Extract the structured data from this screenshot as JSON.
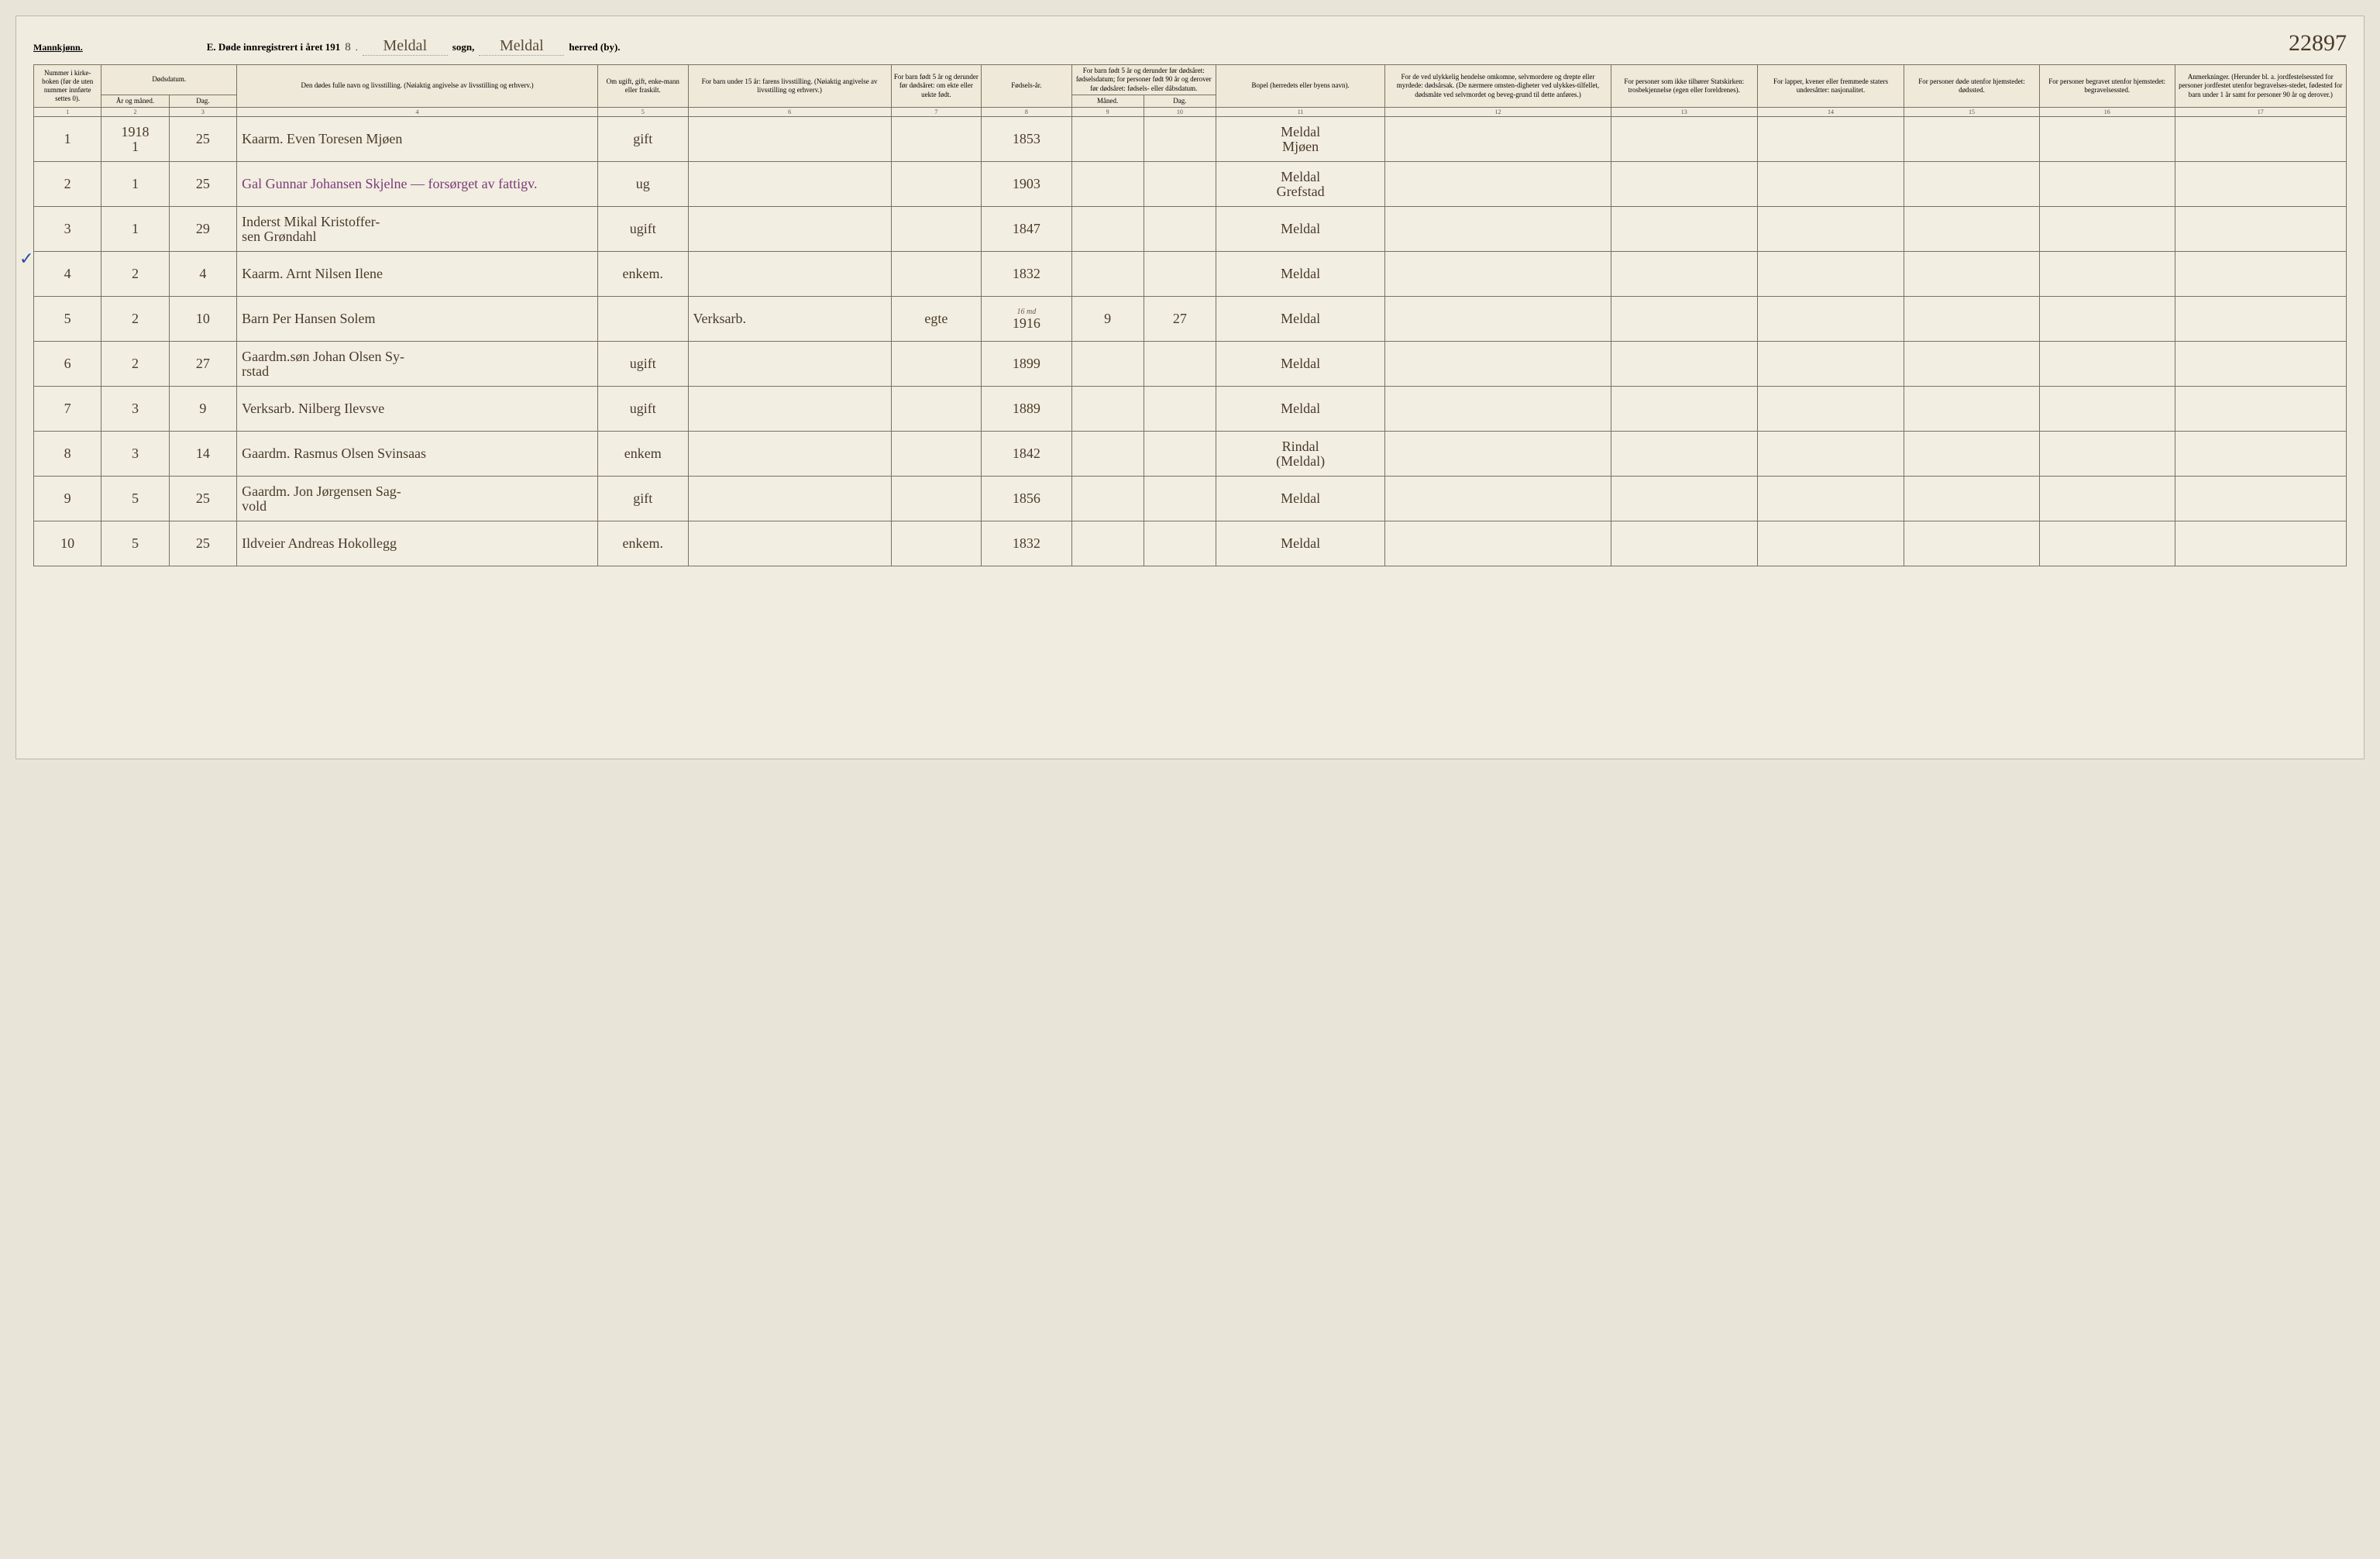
{
  "header": {
    "gender_label": "Mannkjønn.",
    "title_prefix": "E. Døde innregistrert i året 191",
    "year_suffix": "8",
    "sogn_label": "sogn,",
    "sogn_value": "Meldal",
    "herred_label": "herred (by).",
    "herred_value": "Meldal",
    "page_no": "22897"
  },
  "columns": {
    "c1": "Nummer i kirke-boken (før de uten nummer innførte settes 0).",
    "c2_group": "Dødsdatum.",
    "c2": "År og måned.",
    "c3": "Dag.",
    "c4": "Den dødes fulle navn og livsstilling. (Nøiaktig angivelse av livsstilling og erhverv.)",
    "c5": "Om ugift, gift, enke-mann eller fraskilt.",
    "c6": "For barn under 15 år: farens livsstilling. (Nøiaktig angivelse av livsstilling og erhverv.)",
    "c7": "For barn født 5 år og derunder før dødsåret: om ekte eller uekte født.",
    "c8": "Fødsels-år.",
    "c9_group": "For barn født 5 år og derunder før dødsåret: fødselsdatum; for personer født 90 år og derover før dødsåret: fødsels- eller dåbsdatum.",
    "c9": "Måned.",
    "c10": "Dag.",
    "c11": "Bopel (herredets eller byens navn).",
    "c12": "For de ved ulykkelig hendelse omkomne, selvmordere og drepte eller myrdede: dødsårsak. (De nærmere omsten-digheter ved ulykkes-tilfellet, dødsmåte ved selvmordet og beveg-grund til dette anføres.)",
    "c13": "For personer som ikke tilhører Statskirken: trosbekjennelse (egen eller foreldrenes).",
    "c14": "For lapper, kvener eller fremmede staters undersåtter: nasjonalitet.",
    "c15": "For personer døde utenfor hjemstedet: dødssted.",
    "c16": "For personer begravet utenfor hjemstedet: begravelsessted.",
    "c17": "Anmerkninger. (Herunder bl. a. jordfestelsessted for personer jordfestet utenfor begravelses-stedet, fødested for barn under 1 år samt for personer 90 år og derover.)"
  },
  "colnums": [
    "1",
    "2",
    "3",
    "4",
    "5",
    "6",
    "7",
    "8",
    "9",
    "10",
    "11",
    "12",
    "13",
    "14",
    "15",
    "16",
    "17"
  ],
  "rows": [
    {
      "n": "1",
      "ym": "1918\n1",
      "d": "25",
      "name": "Kaarm. Even Toresen Mjøen",
      "status": "gift",
      "father": "",
      "legit": "",
      "birth": "1853",
      "bm": "",
      "bd": "",
      "place": "Meldal\nMjøen",
      "c12": "",
      "c13": "",
      "c14": "",
      "c15": "",
      "c16": "",
      "c17": ""
    },
    {
      "n": "2",
      "ym": "1",
      "d": "25",
      "name": "Gal Gunnar Johansen Skjelne — forsørget av fattigv.",
      "status": "ug",
      "father": "",
      "legit": "",
      "birth": "1903",
      "bm": "",
      "bd": "",
      "place": "Meldal\nGrefstad",
      "c12": "",
      "c13": "",
      "c14": "",
      "c15": "",
      "c16": "",
      "c17": ""
    },
    {
      "n": "3",
      "ym": "1",
      "d": "29",
      "name": "Inderst Mikal Kristoffer-\nsen Grøndahl",
      "status": "ugift",
      "father": "",
      "legit": "",
      "birth": "1847",
      "bm": "",
      "bd": "",
      "place": "Meldal",
      "c12": "",
      "c13": "",
      "c14": "",
      "c15": "",
      "c16": "",
      "c17": ""
    },
    {
      "n": "4",
      "ym": "2",
      "d": "4",
      "name": "Kaarm. Arnt Nilsen Ilene",
      "status": "enkem.",
      "father": "",
      "legit": "",
      "birth": "1832",
      "bm": "",
      "bd": "",
      "place": "Meldal",
      "c12": "",
      "c13": "",
      "c14": "",
      "c15": "",
      "c16": "",
      "c17": ""
    },
    {
      "n": "5",
      "ym": "2",
      "d": "10",
      "name": "Barn Per Hansen Solem",
      "status": "",
      "father": "Verksarb.",
      "legit": "egte",
      "birth": "1916",
      "bm": "9",
      "bd": "27",
      "place": "Meldal",
      "c12": "",
      "c13": "",
      "c14": "",
      "c15": "",
      "c16": "",
      "c17": "",
      "note": "16 md"
    },
    {
      "n": "6",
      "ym": "2",
      "d": "27",
      "name": "Gaardm.søn Johan Olsen Sy-\nrstad",
      "status": "ugift",
      "father": "",
      "legit": "",
      "birth": "1899",
      "bm": "",
      "bd": "",
      "place": "Meldal",
      "c12": "",
      "c13": "",
      "c14": "",
      "c15": "",
      "c16": "",
      "c17": ""
    },
    {
      "n": "7",
      "ym": "3",
      "d": "9",
      "name": "Verksarb. Nilberg Ilevsve",
      "status": "ugift",
      "father": "",
      "legit": "",
      "birth": "1889",
      "bm": "",
      "bd": "",
      "place": "Meldal",
      "c12": "",
      "c13": "",
      "c14": "",
      "c15": "",
      "c16": "",
      "c17": ""
    },
    {
      "n": "8",
      "ym": "3",
      "d": "14",
      "name": "Gaardm. Rasmus Olsen Svinsaas",
      "status": "enkem",
      "father": "",
      "legit": "",
      "birth": "1842",
      "bm": "",
      "bd": "",
      "place": "Rindal\n(Meldal)",
      "c12": "",
      "c13": "",
      "c14": "",
      "c15": "",
      "c16": "",
      "c17": ""
    },
    {
      "n": "9",
      "ym": "5",
      "d": "25",
      "name": "Gaardm. Jon Jørgensen Sag-\nvold",
      "status": "gift",
      "father": "",
      "legit": "",
      "birth": "1856",
      "bm": "",
      "bd": "",
      "place": "Meldal",
      "c12": "",
      "c13": "",
      "c14": "",
      "c15": "",
      "c16": "",
      "c17": ""
    },
    {
      "n": "10",
      "ym": "5",
      "d": "25",
      "name": "Ildveier Andreas Hokollegg",
      "status": "enkem.",
      "father": "",
      "legit": "",
      "birth": "1832",
      "bm": "",
      "bd": "",
      "place": "Meldal",
      "c12": "",
      "c13": "",
      "c14": "",
      "c15": "",
      "c16": "",
      "c17": ""
    }
  ],
  "colors": {
    "paper": "#f0ecdf",
    "border": "#7a7260",
    "ink": "#4a3a2a",
    "purple_ink": "#7a3a7a",
    "blue_tick": "#2a4aa8"
  }
}
